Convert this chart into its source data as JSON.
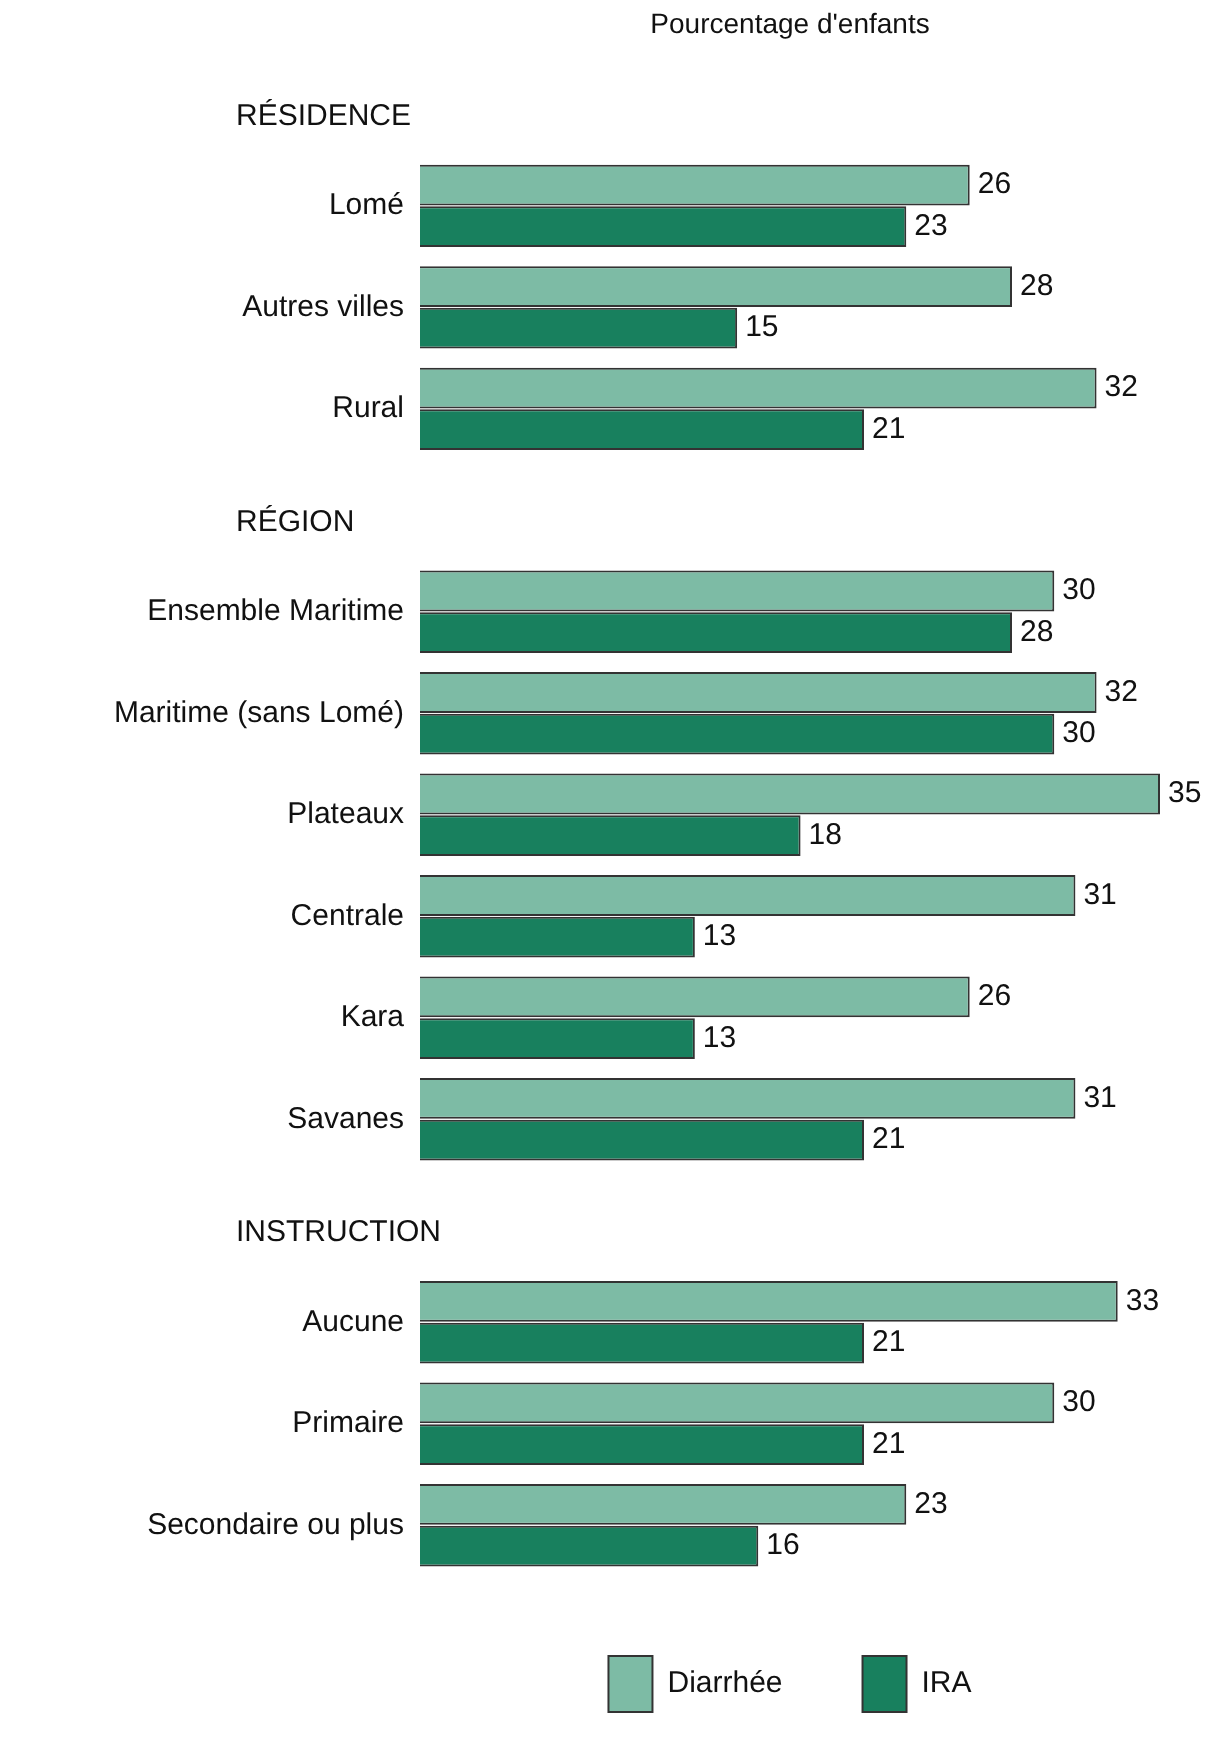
{
  "chart_data": {
    "type": "bar",
    "orientation": "horizontal",
    "title": "Pourcentage d'enfants",
    "categories": [
      null,
      "Lomé",
      "Autres villes",
      "Rural",
      null,
      "Ensemble Maritime",
      "Maritime (sans Lomé)",
      "Plateaux",
      "Centrale",
      "Kara",
      "Savanes",
      null,
      "Aucune",
      "Primaire",
      "Secondaire ou plus"
    ],
    "annotations": [
      "RÉSIDENCE",
      "RÉGION",
      "INSTRUCTION"
    ],
    "series": [
      {
        "name": "Diarrhée",
        "color": "#7dbba5",
        "values": [
          null,
          26,
          28,
          32,
          null,
          30,
          32,
          35,
          31,
          26,
          31,
          null,
          33,
          30,
          23
        ]
      },
      {
        "name": "IRA",
        "color": "#18805e",
        "values": [
          null,
          23,
          15,
          21,
          null,
          28,
          30,
          18,
          13,
          13,
          21,
          null,
          21,
          21,
          16
        ]
      }
    ],
    "data_labels": true,
    "legend": "bottom"
  }
}
